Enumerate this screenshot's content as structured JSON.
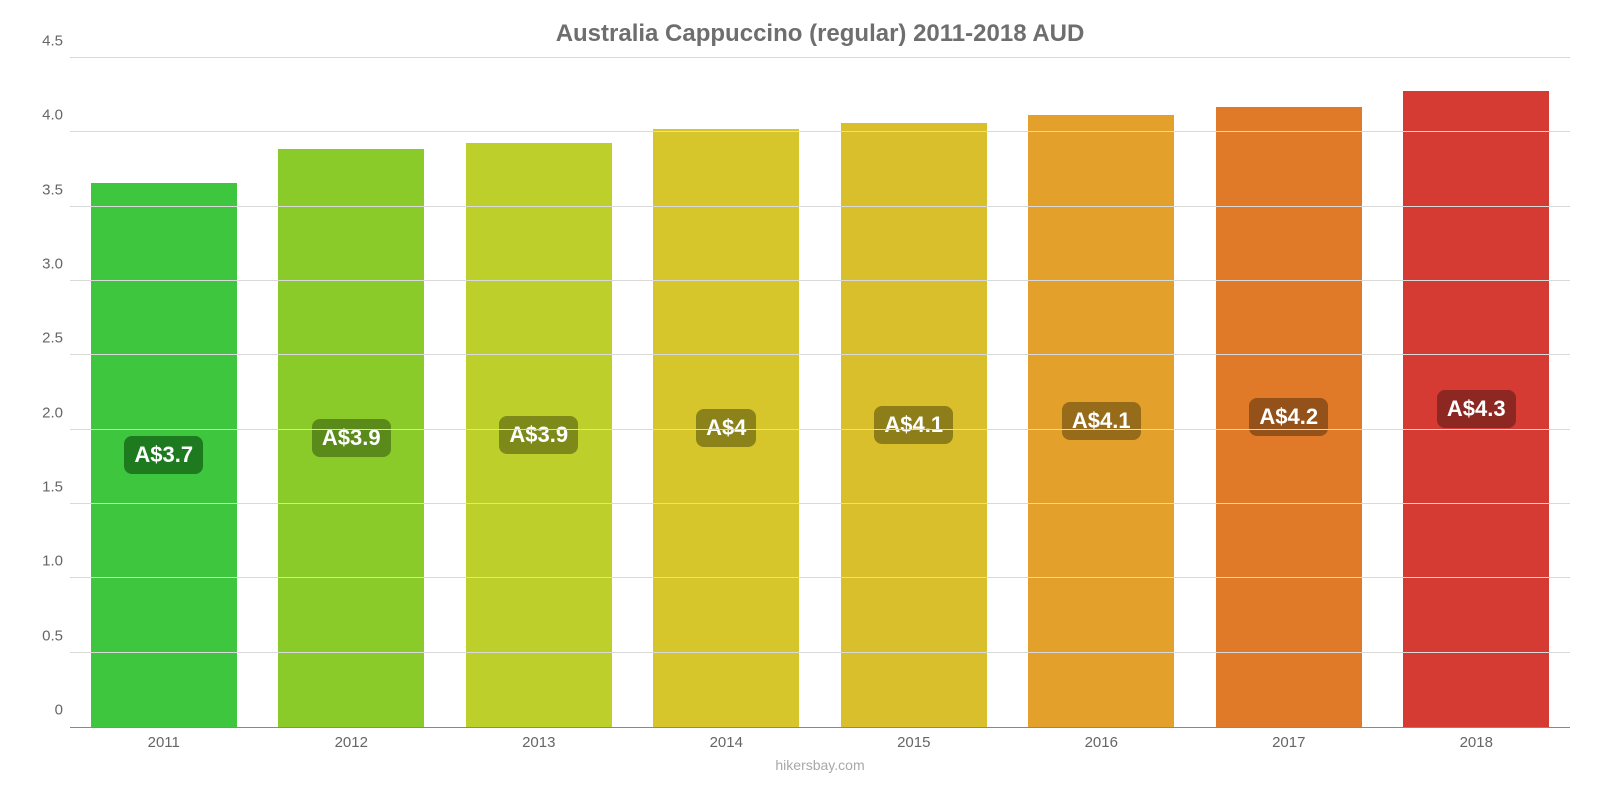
{
  "chart": {
    "type": "bar",
    "title": "Australia Cappuccino (regular) 2011-2018 AUD",
    "title_fontsize": 24,
    "title_color": "#6e6e6e",
    "background_color": "#ffffff",
    "grid_color": "#d9d9d9",
    "axis_color": "#888888",
    "label_color": "#666666",
    "label_fontsize": 15,
    "ymin": 0,
    "ymax": 4.5,
    "ytick_step": 0.5,
    "yticks": [
      "0",
      "0.5",
      "1.0",
      "1.5",
      "2.0",
      "2.5",
      "3.0",
      "3.5",
      "4.0",
      "4.5"
    ],
    "categories": [
      "2011",
      "2012",
      "2013",
      "2014",
      "2015",
      "2016",
      "2017",
      "2018"
    ],
    "values": [
      3.66,
      3.89,
      3.93,
      4.02,
      4.06,
      4.12,
      4.17,
      4.28
    ],
    "value_labels": [
      "A$3.7",
      "A$3.9",
      "A$3.9",
      "A$4",
      "A$4.1",
      "A$4.1",
      "A$4.2",
      "A$4.3"
    ],
    "bar_colors": [
      "#3ec63e",
      "#8acb2a",
      "#bccf2a",
      "#d6c62b",
      "#d8bf2b",
      "#e3a02a",
      "#e07a28",
      "#d53b32"
    ],
    "badge_colors": [
      "#1e7a1e",
      "#5a8a1a",
      "#7d8a1a",
      "#8c821a",
      "#8d7e1a",
      "#966b1a",
      "#945119",
      "#8c2721"
    ],
    "badge_fontsize": 22,
    "bar_width_pct": 78,
    "footer": "hikersbay.com",
    "footer_color": "#a8a8a8",
    "footer_fontsize": 14
  }
}
